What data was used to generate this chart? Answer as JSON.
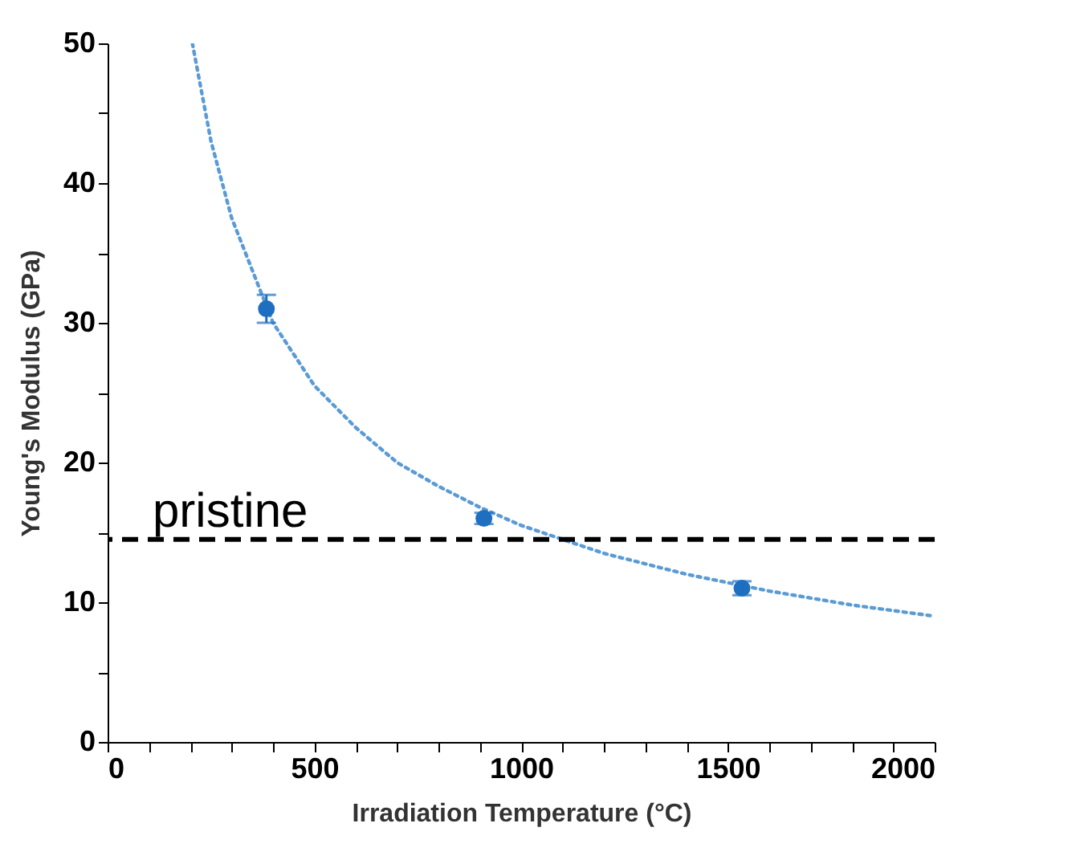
{
  "chart_data": {
    "type": "scatter",
    "xlabel": "Irradiation Temperature (°C)",
    "ylabel": "Young's Modulus (GPa)",
    "xlim": [
      0,
      2000
    ],
    "ylim": [
      0,
      50
    ],
    "xticks": [
      0,
      {
        "value": 100,
        "label": null
      },
      {
        "value": 200,
        "label": null
      },
      {
        "value": 300,
        "label": null
      },
      {
        "value": 400,
        "label": null
      },
      500,
      {
        "value": 600,
        "label": null
      },
      {
        "value": 700,
        "label": null
      },
      {
        "value": 800,
        "label": null
      },
      {
        "value": 900,
        "label": null
      },
      1000,
      {
        "value": 1100,
        "label": null
      },
      {
        "value": 1200,
        "label": null
      },
      {
        "value": 1300,
        "label": null
      },
      {
        "value": 1400,
        "label": null
      },
      1500,
      {
        "value": 1600,
        "label": null
      },
      {
        "value": 1700,
        "label": null
      },
      {
        "value": 1800,
        "label": null
      },
      {
        "value": 1900,
        "label": null
      },
      2000
    ],
    "yticks": [
      0,
      {
        "value": 5,
        "label": null
      },
      10,
      {
        "value": 15,
        "label": null
      },
      20,
      {
        "value": 25,
        "label": null
      },
      30,
      {
        "value": 35,
        "label": null
      },
      40,
      {
        "value": 45,
        "label": null
      },
      50
    ],
    "grid": false,
    "series": [
      {
        "type": "line",
        "color": "#5b9bd5",
        "line_style": "dotted",
        "marker": "none",
        "x": [
          205,
          250,
          300,
          400,
          500,
          600,
          700,
          800,
          900,
          1000,
          1200,
          1400,
          1600,
          1800,
          2000
        ],
        "values": [
          50,
          43,
          37.5,
          30,
          25.5,
          22.5,
          20,
          18.3,
          16.8,
          15.5,
          13.5,
          12,
          10.8,
          9.8,
          9
        ]
      },
      {
        "color": "#1f6fc0",
        "marker": "circle",
        "x": [
          384,
          910,
          1534
        ],
        "values": [
          31,
          16,
          11
        ],
        "errors": [
          1,
          0.4,
          0.5
        ]
      }
    ],
    "ref_lines": [
      {
        "axis": "y",
        "value": 14.5,
        "label": "pristine",
        "color": "#000000",
        "line_style": "dashed"
      }
    ]
  }
}
